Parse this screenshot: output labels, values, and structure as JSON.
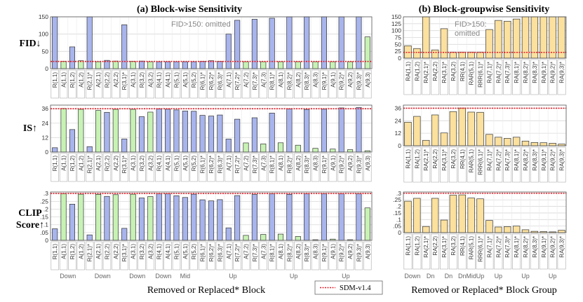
{
  "chart_data": [
    {
      "type": "bar",
      "title": "(a) Block-wise Sensitivity",
      "xlabel": "Removed or Replaced* Block",
      "categories": [
        "R(1,1)",
        "A(1,1)",
        "R(1,2)",
        "A(1,2)",
        "R(2,1)*",
        "A(2,1)",
        "R(2,2)",
        "A(2,2)",
        "R(3,1)*",
        "A(3,1)",
        "R(3,2)",
        "A(3,2)",
        "R(4,1)",
        "A(4,1)",
        "R(5,1)",
        "A(5,1)",
        "R(5,2)",
        "R(6,1)*",
        "R(6,2)*",
        "R(6,3)*",
        "A(7,1)",
        "R(7,2)*",
        "A(7,2)",
        "R(7,3)*",
        "A(7,3)",
        "R(8,1)*",
        "A(8,1)",
        "R(8,2)*",
        "A(8,2)",
        "R(8,3)*",
        "A(8,3)",
        "R(9,1)*",
        "A(9,1)",
        "R(9,2)*",
        "A(9,2)",
        "R(9,3)*",
        "A(9,3)"
      ],
      "colors": [
        "blue",
        "green",
        "blue",
        "green",
        "blue",
        "green",
        "blue",
        "green",
        "blue",
        "green",
        "blue",
        "green",
        "blue",
        "blue",
        "blue",
        "blue",
        "blue",
        "blue",
        "blue",
        "blue",
        "blue",
        "blue",
        "green",
        "blue",
        "green",
        "blue",
        "green",
        "blue",
        "green",
        "blue",
        "green",
        "blue",
        "green",
        "blue",
        "green",
        "blue",
        "green"
      ],
      "groups": [
        {
          "label": "Down",
          "from": 0,
          "to": 3
        },
        {
          "label": "Down",
          "from": 4,
          "to": 7
        },
        {
          "label": "Down",
          "from": 8,
          "to": 11
        },
        {
          "label": "Down",
          "from": 12,
          "to": 13
        },
        {
          "label": "Mid",
          "from": 14,
          "to": 16
        },
        {
          "label": "Up",
          "from": 17,
          "to": 24
        },
        {
          "label": "Up",
          "from": 25,
          "to": 30
        },
        {
          "label": "Up",
          "from": 31,
          "to": 36
        }
      ],
      "note": "FID>150: omitted",
      "panels": [
        {
          "ylabel": "FID↓",
          "ylim": [
            0,
            150
          ],
          "yticks": [
            0,
            50,
            100,
            150
          ],
          "baseline": 21,
          "values": [
            150,
            21,
            63,
            23,
            150,
            20,
            24,
            22,
            127,
            21,
            22,
            20,
            20,
            20,
            20,
            20,
            20,
            21,
            23,
            21,
            100,
            140,
            20,
            143,
            20,
            146,
            20,
            150,
            20,
            150,
            20,
            150,
            20,
            150,
            20,
            150,
            92
          ]
        },
        {
          "ylabel": "IS↑",
          "ylim": [
            0,
            39
          ],
          "yticks": [
            0,
            12,
            24,
            36
          ],
          "baseline": 36,
          "values": [
            3.6,
            36.2,
            18.7,
            35.5,
            4.5,
            34.6,
            33,
            35.5,
            10.9,
            35.5,
            29.4,
            33.2,
            35.9,
            35.6,
            35,
            34.1,
            33.9,
            30.5,
            29.9,
            30.8,
            10.8,
            27.3,
            7.6,
            28.5,
            6.8,
            32.4,
            7.7,
            35.8,
            5.7,
            35.4,
            3.1,
            35.6,
            2.5,
            36.7,
            2.0,
            37.1,
            1.1
          ]
        },
        {
          "ylabel": "CLIP Score↑",
          "ylim": [
            0,
            0.31
          ],
          "yticks": [
            0,
            0.05,
            0.1,
            0.15,
            0.2,
            0.25,
            0.3
          ],
          "baseline": 0.3,
          "values": [
            0.074,
            0.298,
            0.232,
            0.296,
            0.035,
            0.295,
            0.282,
            0.293,
            0.077,
            0.296,
            0.272,
            0.281,
            0.298,
            0.298,
            0.286,
            0.275,
            0.296,
            0.26,
            0.253,
            0.261,
            0.08,
            0.287,
            0.032,
            0.294,
            0.038,
            0.298,
            0.04,
            0.295,
            0.025,
            0.298,
            0.004,
            0.298,
            0.008,
            0.298,
            0.004,
            0.298,
            0.208
          ]
        }
      ]
    },
    {
      "type": "bar",
      "title": "(b) Block-groupwise Sensitivity",
      "xlabel": "Removed or Replaced* Block Group",
      "categories": [
        "RA(1,1)",
        "RA(1,2)",
        "RA(2,1)*",
        "RA(2,2)",
        "RA(3,1)*",
        "RA(3,2)",
        "RR(4,1)",
        "RAR(5,1)",
        "RRR(6,1)*",
        "RA(7,1)*",
        "RA(7,2)*",
        "RA(7,3)*",
        "RA(8,1)*",
        "RA(8,2)*",
        "RA(8,3)*",
        "RA(9,1)*",
        "RA(9,2)*",
        "RA(9,3)*"
      ],
      "groups": [
        {
          "label": "Down",
          "from": 0,
          "to": 1
        },
        {
          "label": "Dn",
          "from": 2,
          "to": 3
        },
        {
          "label": "Dn",
          "from": 4,
          "to": 5
        },
        {
          "label": "Dn",
          "from": 6,
          "to": 6
        },
        {
          "label": "Mid",
          "from": 7,
          "to": 7
        },
        {
          "label": "Up",
          "from": 8,
          "to": 8
        },
        {
          "label": "Up",
          "from": 9,
          "to": 11
        },
        {
          "label": "Up",
          "from": 12,
          "to": 14
        },
        {
          "label": "Up",
          "from": 15,
          "to": 17
        }
      ],
      "note": "FID>150:\nomitted",
      "panels": [
        {
          "ylabel": "FID↓",
          "ylim": [
            0,
            150
          ],
          "yticks": [
            0,
            25,
            50,
            75,
            100,
            125,
            150
          ],
          "baseline": 21,
          "values": [
            45,
            35,
            150,
            30,
            107,
            21,
            21,
            21,
            21,
            104,
            137,
            134,
            142,
            150,
            150,
            150,
            150,
            150
          ]
        },
        {
          "ylabel": "IS↑",
          "ylim": [
            0,
            39
          ],
          "yticks": [
            0,
            12,
            24,
            36
          ],
          "baseline": 36,
          "values": [
            22.6,
            28.2,
            5.2,
            29.6,
            12.3,
            32.8,
            36.2,
            32.3,
            32.1,
            10.9,
            8.2,
            7.1,
            8.2,
            4.5,
            3.1,
            2.9,
            2.4,
            1.6
          ]
        },
        {
          "ylabel": "CLIP Score↑",
          "ylim": [
            0,
            0.31
          ],
          "yticks": [
            0,
            0.05,
            0.1,
            0.15,
            0.2,
            0.25,
            0.3
          ],
          "baseline": 0.3,
          "values": [
            0.24,
            0.262,
            0.047,
            0.262,
            0.096,
            0.286,
            0.288,
            0.264,
            0.258,
            0.093,
            0.043,
            0.046,
            0.05,
            0.022,
            0.01,
            0.008,
            0.006,
            0.018
          ]
        }
      ]
    }
  ],
  "legend": {
    "label": "SDM-v1.4"
  },
  "colors": {
    "blue": "#a8b4ec",
    "green": "#c7f2b4",
    "orange": "#fbe09e",
    "red": "#e0202a",
    "edge": "#333333"
  }
}
